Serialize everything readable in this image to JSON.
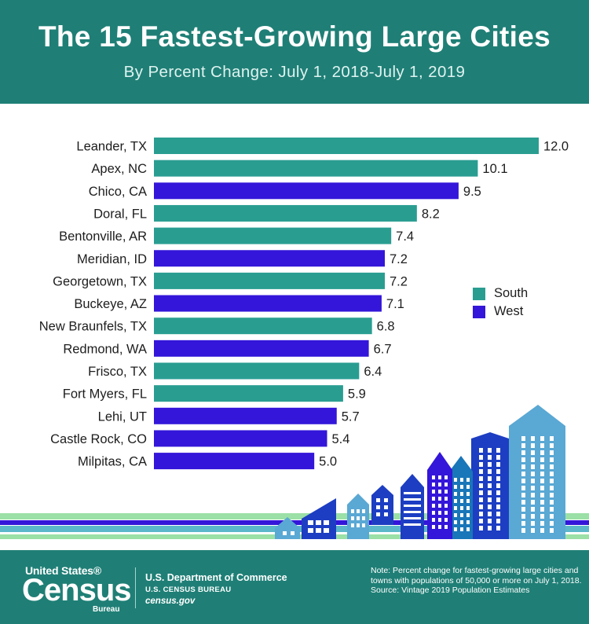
{
  "header": {
    "title": "The 15 Fastest-Growing Large Cities",
    "subtitle": "By Percent Change: July 1, 2018-July 1, 2019"
  },
  "colors": {
    "South": "#2a9d91",
    "West": "#3316d9",
    "header_bg": "#1f7f76"
  },
  "chart_data": {
    "type": "bar",
    "orientation": "horizontal",
    "title": "The 15 Fastest-Growing Large Cities",
    "subtitle": "By Percent Change: July 1, 2018-July 1, 2019",
    "xlim": [
      0,
      12.0
    ],
    "grid": false,
    "legend": {
      "placement": "right",
      "entries": [
        "South",
        "West"
      ]
    },
    "categories": [
      "Leander, TX",
      "Apex, NC",
      "Chico, CA",
      "Doral, FL",
      "Bentonville, AR",
      "Meridian, ID",
      "Georgetown, TX",
      "Buckeye, AZ",
      "New Braunfels, TX",
      "Redmond, WA",
      "Frisco, TX",
      "Fort Myers, FL",
      "Lehi, UT",
      "Castle Rock, CO",
      "Milpitas, CA"
    ],
    "values": [
      12.0,
      10.1,
      9.5,
      8.2,
      7.4,
      7.2,
      7.2,
      7.1,
      6.8,
      6.7,
      6.4,
      5.9,
      5.7,
      5.4,
      5.0
    ],
    "value_labels": [
      "12.0",
      "10.1",
      "9.5",
      "8.2",
      "7.4",
      "7.2",
      "7.2",
      "7.1",
      "6.8",
      "6.7",
      "6.4",
      "5.9",
      "5.7",
      "5.4",
      "5.0"
    ],
    "region": [
      "South",
      "South",
      "West",
      "South",
      "South",
      "West",
      "South",
      "West",
      "South",
      "West",
      "South",
      "South",
      "West",
      "West",
      "West"
    ]
  },
  "footer": {
    "logo_top": "United States®",
    "logo_main": "Census",
    "logo_bottom": "Bureau",
    "dept_line1": "U.S. Department of Commerce",
    "dept_line2": "U.S. CENSUS BUREAU",
    "dept_line3": "census.gov",
    "note": "Note: Percent change for fastest-growing large cities and towns with populations of 50,000 or more on July 1, 2018.",
    "source": "Source: Vintage 2019 Population Estimates"
  }
}
